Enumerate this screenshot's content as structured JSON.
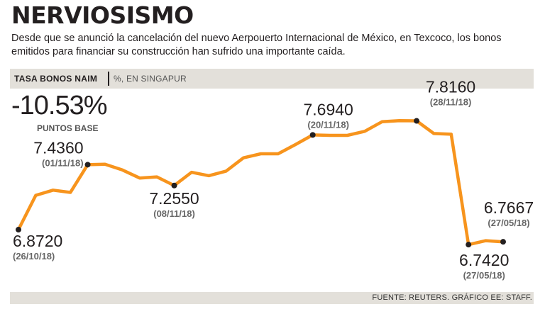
{
  "title": "NERVIOSISMO",
  "subtitle": "Desde que se anunció la cancelación del nuevo Aerpouerto Internacional de México, en Texcoco, los bonos emitidos para financiar su construcción han sufrido una importante caída.",
  "band": {
    "label": "TASA BONOS NAIM",
    "unit": "%, EN SINGAPUR"
  },
  "change": {
    "value": "-10.53%",
    "unit": "PUNTOS BASE"
  },
  "source": "FUENTE: REUTERS. GRÁFICO EE: STAFF.",
  "colors": {
    "line": "#f7941d",
    "marker": "#231f20",
    "band": "#e3e0da"
  },
  "chart_data": {
    "type": "line",
    "title": "TASA BONOS NAIM",
    "ylabel": "%, EN SINGAPUR",
    "ylim": [
      6.7,
      7.85
    ],
    "grid": false,
    "values": [
      6.872,
      7.17,
      7.215,
      7.195,
      7.436,
      7.44,
      7.39,
      7.32,
      7.33,
      7.255,
      7.37,
      7.34,
      7.38,
      7.495,
      7.53,
      7.53,
      7.61,
      7.694,
      7.69,
      7.69,
      7.725,
      7.808,
      7.818,
      7.816,
      7.706,
      7.7,
      6.742,
      6.776,
      6.7667
    ],
    "annotations": [
      {
        "index": 0,
        "value": "6.8720",
        "date": "(26/10/18)"
      },
      {
        "index": 4,
        "value": "7.4360",
        "date": "(01/11/18)"
      },
      {
        "index": 9,
        "value": "7.2550",
        "date": "(08/11/18)"
      },
      {
        "index": 17,
        "value": "7.6940",
        "date": "(20/11/18)"
      },
      {
        "index": 23,
        "value": "7.8160",
        "date": "(28/11/18)"
      },
      {
        "index": 26,
        "value": "6.7420",
        "date": "(27/05/18)"
      },
      {
        "index": 28,
        "value": "6.7667",
        "date": "(27/05/18)"
      }
    ]
  }
}
